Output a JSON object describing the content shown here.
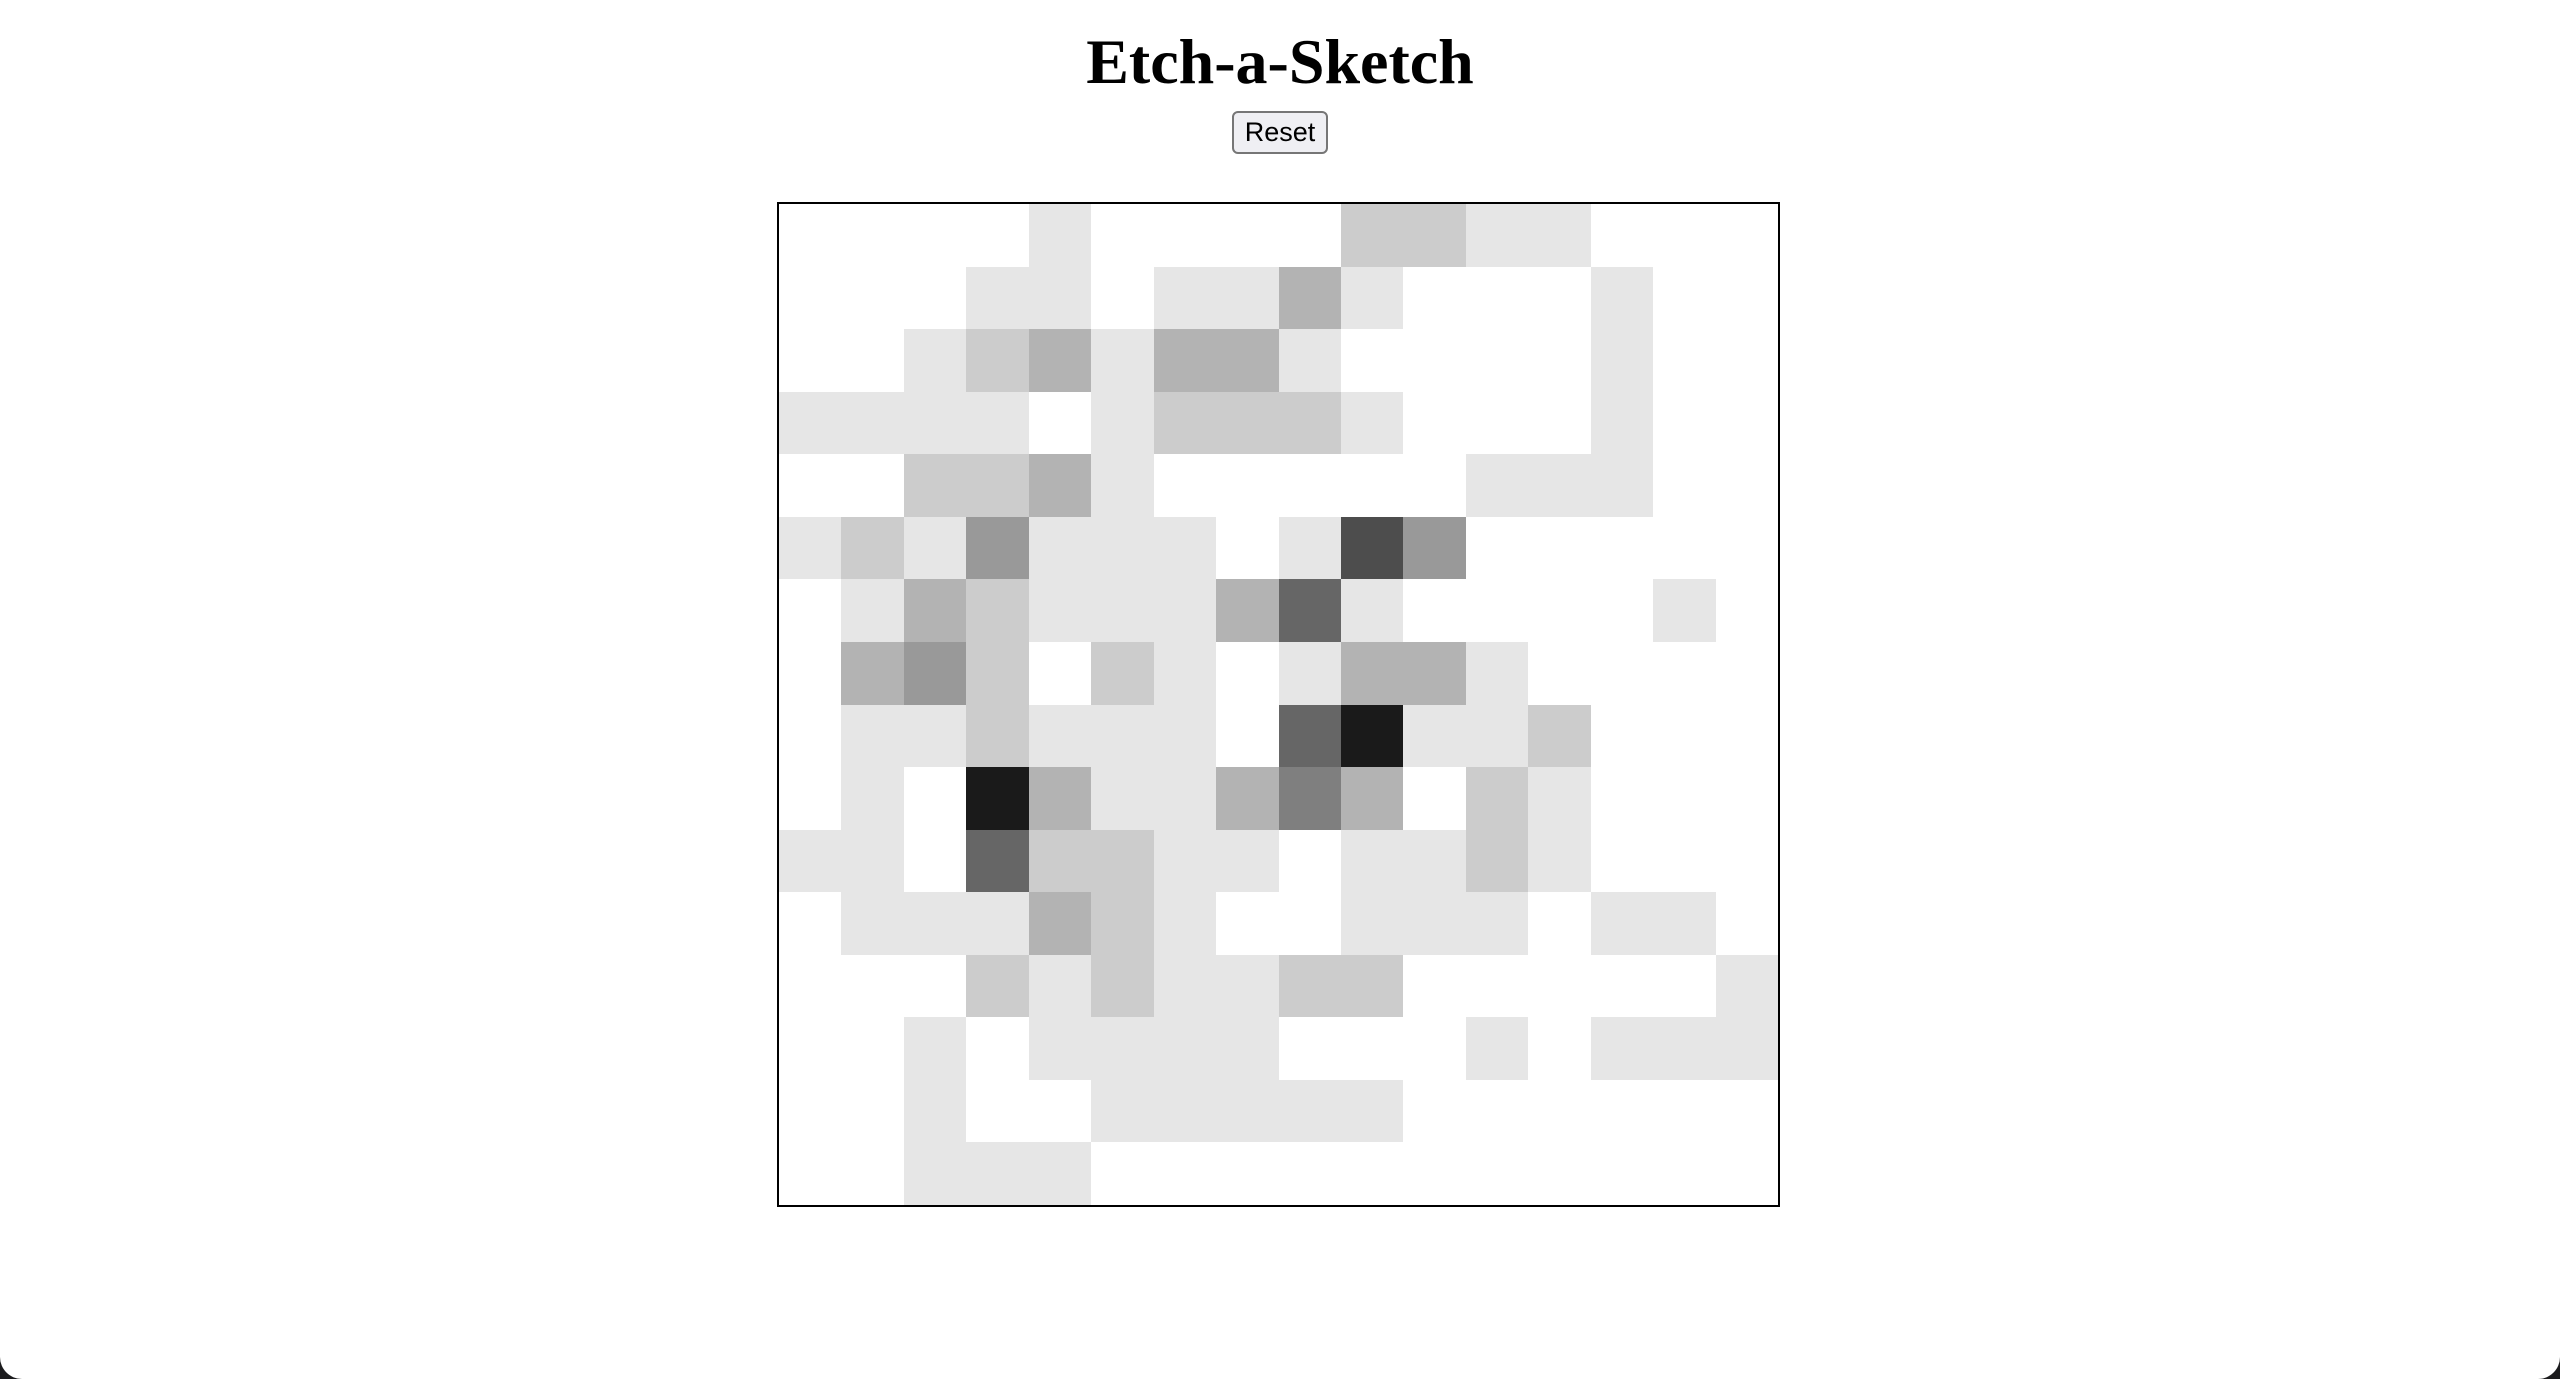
{
  "app": {
    "title": "Etch-a-Sketch",
    "reset_label": "Reset"
  },
  "grid": {
    "size": 16,
    "shades": [
      [
        0,
        0,
        0,
        0,
        1,
        0,
        0,
        0,
        0,
        2,
        2,
        1,
        1,
        0,
        0,
        0
      ],
      [
        0,
        0,
        0,
        1,
        1,
        0,
        1,
        1,
        3,
        1,
        0,
        0,
        0,
        1,
        0,
        0
      ],
      [
        0,
        0,
        1,
        2,
        3,
        1,
        3,
        3,
        1,
        0,
        0,
        0,
        0,
        1,
        0,
        0
      ],
      [
        1,
        1,
        1,
        1,
        0,
        1,
        2,
        2,
        2,
        1,
        0,
        0,
        0,
        1,
        0,
        0
      ],
      [
        0,
        0,
        2,
        2,
        3,
        1,
        0,
        0,
        0,
        0,
        0,
        1,
        1,
        1,
        0,
        0
      ],
      [
        1,
        2,
        1,
        4,
        1,
        1,
        1,
        0,
        1,
        7,
        4,
        0,
        0,
        0,
        0,
        0
      ],
      [
        0,
        1,
        3,
        2,
        1,
        1,
        1,
        3,
        6,
        1,
        0,
        0,
        0,
        0,
        1,
        0
      ],
      [
        0,
        3,
        4,
        2,
        0,
        2,
        1,
        0,
        1,
        3,
        3,
        1,
        0,
        0,
        0,
        0
      ],
      [
        0,
        1,
        1,
        2,
        1,
        1,
        1,
        0,
        6,
        9,
        1,
        1,
        2,
        0,
        0,
        0
      ],
      [
        0,
        1,
        0,
        9,
        3,
        1,
        1,
        3,
        5,
        3,
        0,
        2,
        1,
        0,
        0,
        0
      ],
      [
        1,
        1,
        0,
        6,
        2,
        2,
        1,
        1,
        0,
        1,
        1,
        2,
        1,
        0,
        0,
        0
      ],
      [
        0,
        1,
        1,
        1,
        3,
        2,
        1,
        0,
        0,
        1,
        1,
        1,
        0,
        1,
        1,
        0
      ],
      [
        0,
        0,
        0,
        2,
        1,
        2,
        1,
        1,
        2,
        2,
        0,
        0,
        0,
        0,
        0,
        1
      ],
      [
        0,
        0,
        1,
        0,
        1,
        1,
        1,
        1,
        0,
        0,
        0,
        1,
        0,
        1,
        1,
        1
      ],
      [
        0,
        0,
        1,
        0,
        0,
        1,
        1,
        1,
        1,
        1,
        0,
        0,
        0,
        0,
        0,
        0
      ],
      [
        0,
        0,
        1,
        1,
        1,
        0,
        0,
        0,
        0,
        0,
        0,
        0,
        0,
        0,
        0,
        0
      ]
    ],
    "palette": [
      "#ffffff",
      "#e6e6e6",
      "#cccccc",
      "#b3b3b3",
      "#999999",
      "#7f7f7f",
      "#666666",
      "#4d4d4d",
      "#333333",
      "#1a1a1a"
    ]
  }
}
